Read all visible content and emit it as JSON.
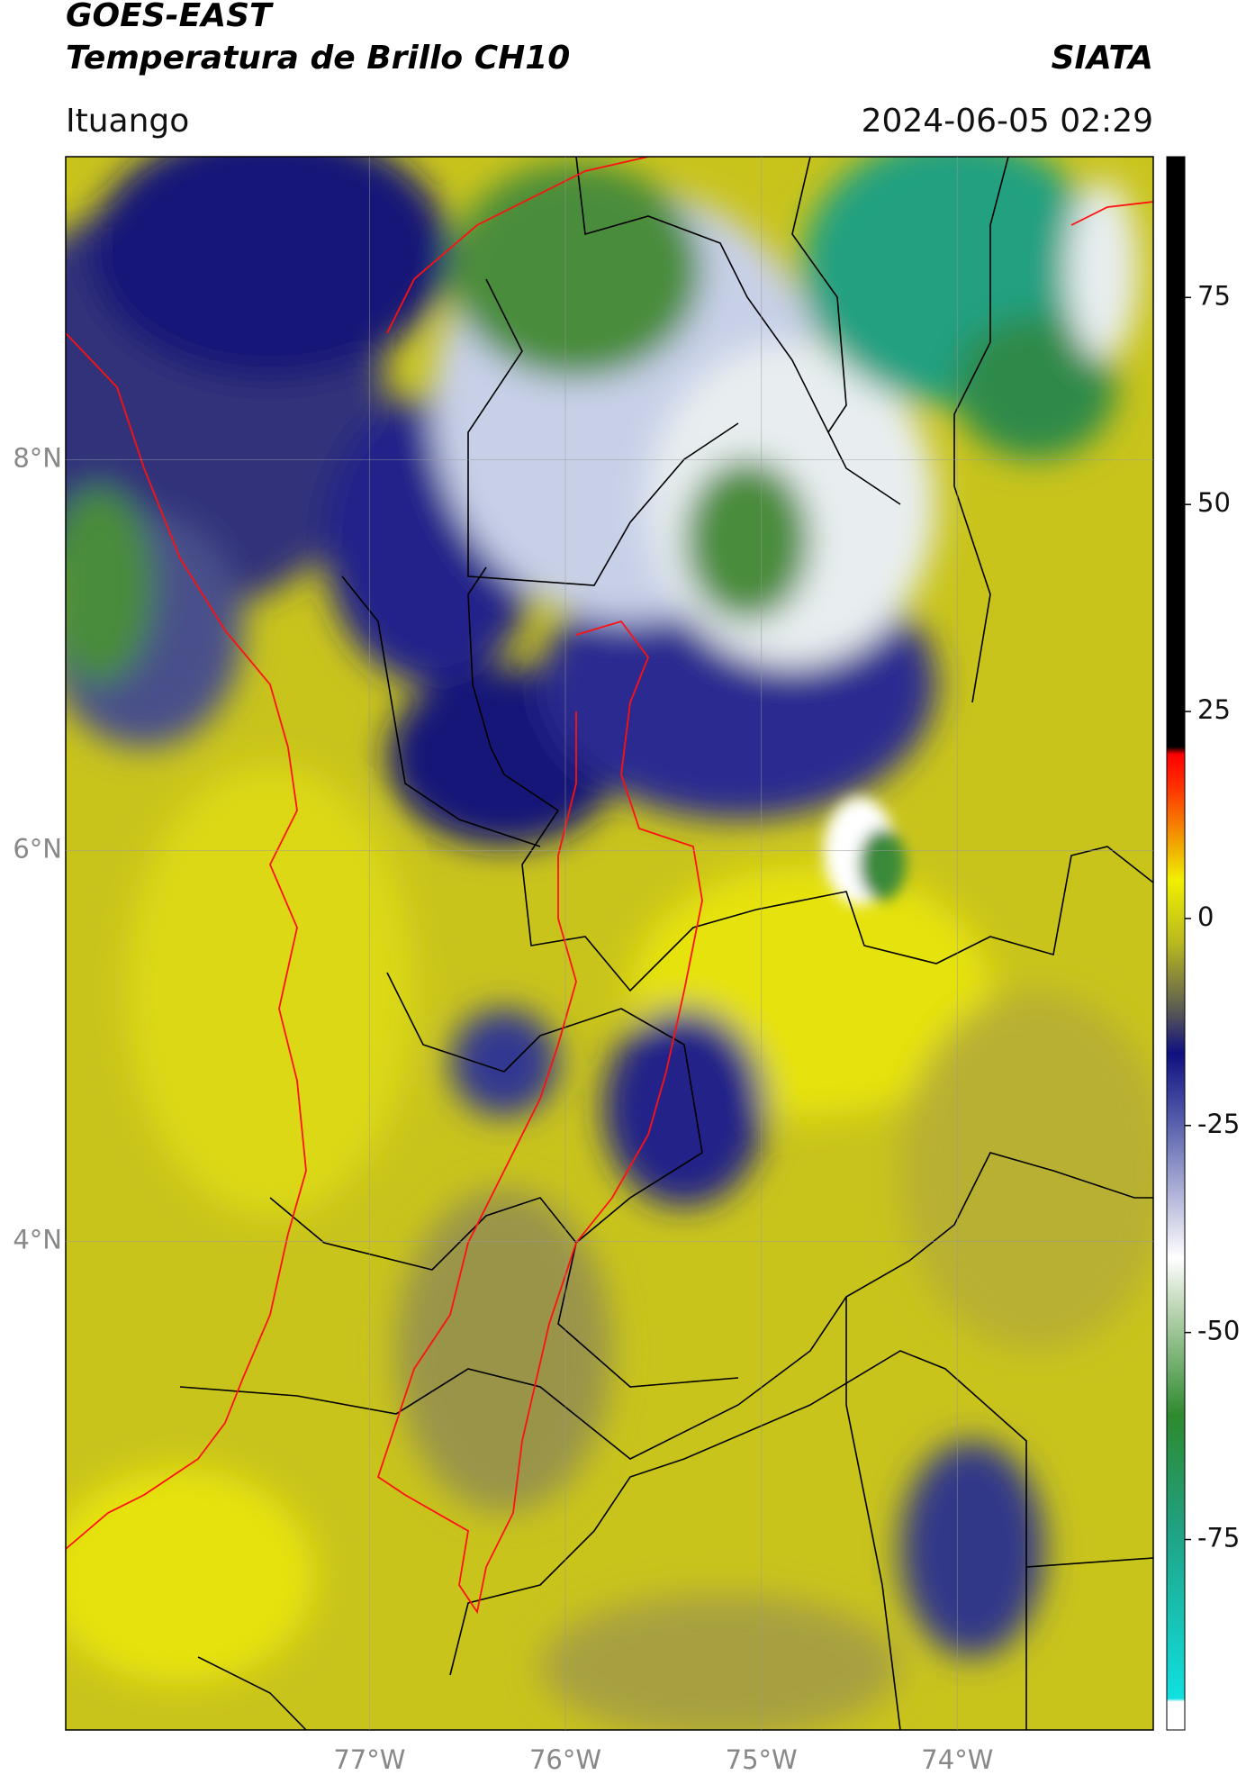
{
  "chart_data": {
    "type": "map",
    "title": "GOES-EAST",
    "subtitle": "Temperatura de Brillo CH10",
    "source": "SIATA",
    "location": "Ituango",
    "datetime": "2024-06-05 02:29",
    "xlim": [
      -78.55,
      -73.0
    ],
    "xticks": [
      {
        "value": -77,
        "label": "77°W"
      },
      {
        "value": -76,
        "label": "76°W"
      },
      {
        "value": -75,
        "label": "75°W"
      },
      {
        "value": -74,
        "label": "74°W"
      }
    ],
    "ylim": [
      1.5,
      9.55
    ],
    "yticks": [
      {
        "value": 4,
        "label": "4°N"
      },
      {
        "value": 6,
        "label": "6°N"
      },
      {
        "value": 8,
        "label": "8°N"
      }
    ],
    "grid": true,
    "colorbar": {
      "clim": [
        -98,
        92
      ],
      "ticks": [
        -75,
        -50,
        -25,
        0,
        25,
        50,
        75
      ]
    }
  }
}
